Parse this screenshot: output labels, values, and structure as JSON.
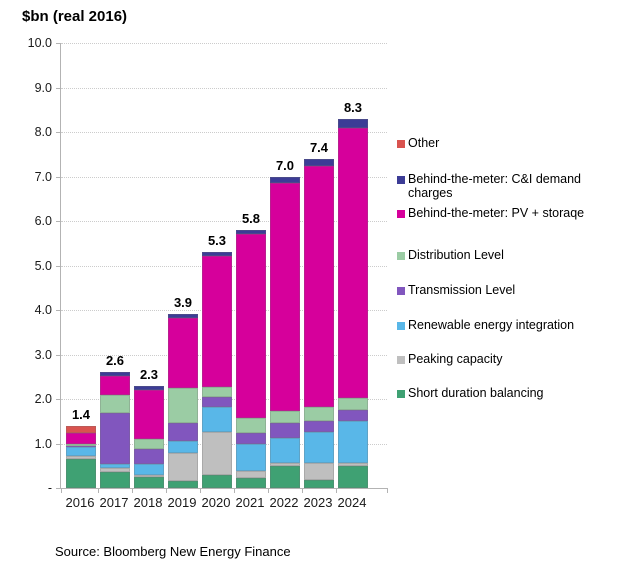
{
  "title": "$bn (real 2016)",
  "source": "Source: Bloomberg New Energy Finance",
  "y_axis": {
    "tick_labels": [
      "10.0",
      "9.0",
      "8.0",
      "7.0",
      "6.0",
      "5.0",
      "4.0",
      "3.0",
      "2.0",
      "1.0",
      "-"
    ]
  },
  "chart_data": {
    "type": "bar",
    "stacked": true,
    "title": "$bn (real 2016)",
    "ylabel": "$bn (real 2016)",
    "xlabel": "",
    "ylim": [
      0,
      10
    ],
    "grid": "horizontal-dotted",
    "legend_position": "right",
    "categories": [
      "2016",
      "2017",
      "2018",
      "2019",
      "2020",
      "2021",
      "2022",
      "2023",
      "2024"
    ],
    "bar_totals": [
      "1.4",
      "2.6",
      "2.3",
      "3.9",
      "5.3",
      "5.8",
      "7.0",
      "7.4",
      "8.3"
    ],
    "series": [
      {
        "key": "short-duration-balancing",
        "name": "Short duration balancing",
        "color": "#3FA173",
        "values": [
          0.65,
          0.35,
          0.25,
          0.15,
          0.3,
          0.23,
          0.5,
          0.19,
          0.5
        ]
      },
      {
        "key": "peaking-capacity",
        "name": "Peaking capacity",
        "color": "#BFBFBF",
        "values": [
          0.08,
          0.09,
          0.05,
          0.64,
          0.97,
          0.15,
          0.07,
          0.38,
          0.06
        ]
      },
      {
        "key": "renewable-energy-integration",
        "name": "Renewable energy integration",
        "color": "#59B7E8",
        "values": [
          0.2,
          0.11,
          0.23,
          0.26,
          0.55,
          0.6,
          0.55,
          0.68,
          0.94
        ]
      },
      {
        "key": "transmission-level",
        "name": "Transmission Level",
        "color": "#8156BE",
        "values": [
          0.02,
          1.13,
          0.34,
          0.41,
          0.23,
          0.26,
          0.34,
          0.26,
          0.26
        ]
      },
      {
        "key": "distribution-level",
        "name": "Distribution Level",
        "color": "#9BCCA4",
        "values": [
          0.04,
          0.41,
          0.23,
          0.79,
          0.23,
          0.34,
          0.26,
          0.3,
          0.26
        ]
      },
      {
        "key": "btm-pv-storage",
        "name": "Behind-the-meter: PV + storaqe",
        "color": "#D6009B",
        "values": [
          0.24,
          0.43,
          1.1,
          1.56,
          2.93,
          4.13,
          5.13,
          5.42,
          6.06
        ]
      },
      {
        "key": "btm-ci-demand-charges",
        "name": "Behind-the-meter: C&I demand charges",
        "color": "#3C3C96",
        "values": [
          0.0,
          0.08,
          0.1,
          0.09,
          0.09,
          0.09,
          0.15,
          0.17,
          0.22
        ]
      },
      {
        "key": "other",
        "name": "Other",
        "color": "#D9534F",
        "values": [
          0.17,
          0.0,
          0.0,
          0.0,
          0.0,
          0.0,
          0.0,
          0.0,
          0.0
        ]
      }
    ]
  }
}
